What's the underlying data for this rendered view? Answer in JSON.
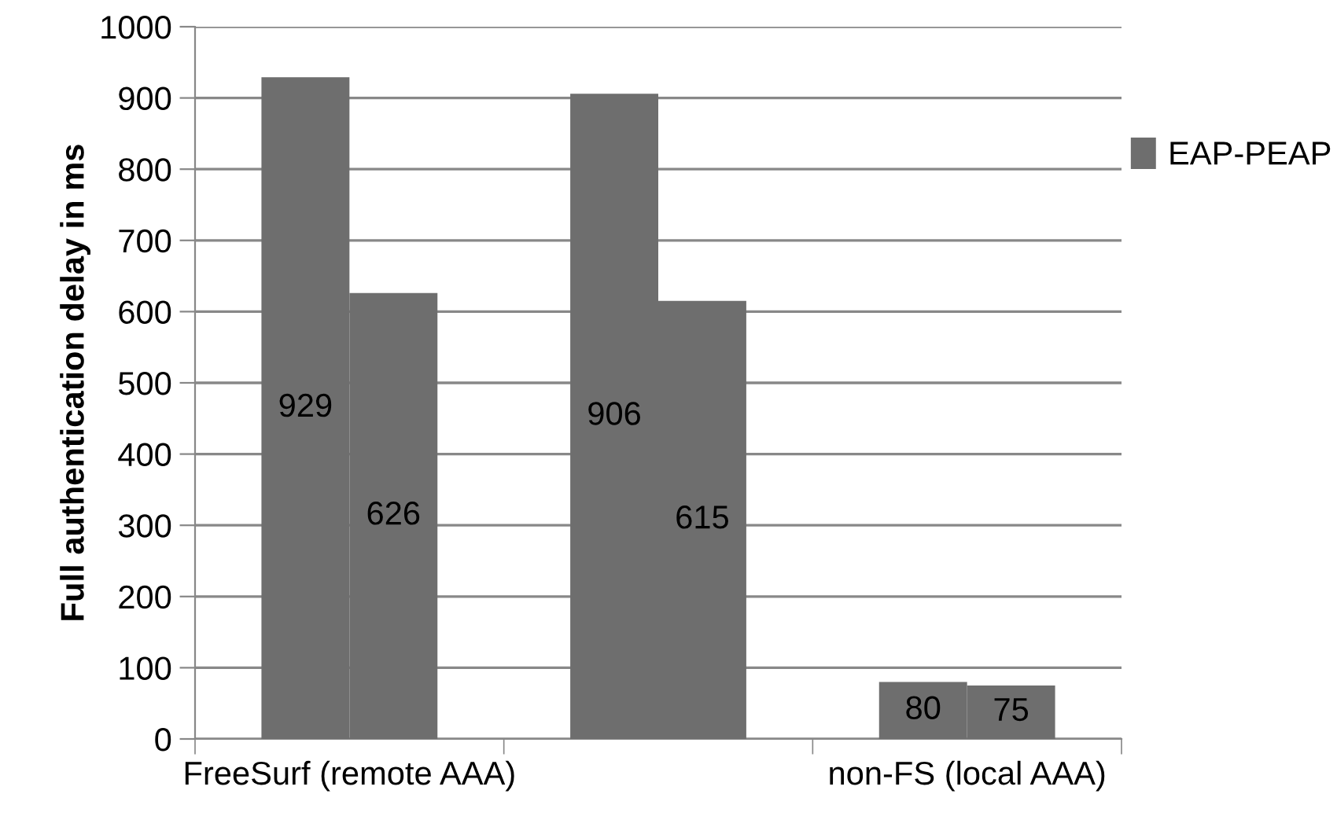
{
  "chart_data": {
    "type": "bar",
    "ylabel": "Full authentication delay in ms",
    "categories": [
      "FreeSurf (remote AAA)",
      null,
      "non-FS (local AAA)"
    ],
    "series": [
      {
        "name": "EAP-PEAP",
        "color": "#6e6e6e",
        "values": [
          929,
          906,
          80
        ]
      },
      {
        "color": "#6e6e6e",
        "values": [
          626,
          615,
          75
        ]
      }
    ],
    "ylim": [
      0,
      1000
    ],
    "yticks": [
      0,
      100,
      200,
      300,
      400,
      500,
      600,
      700,
      800,
      900,
      1000
    ],
    "grid": "y",
    "legend": "right",
    "data_labels": true
  }
}
